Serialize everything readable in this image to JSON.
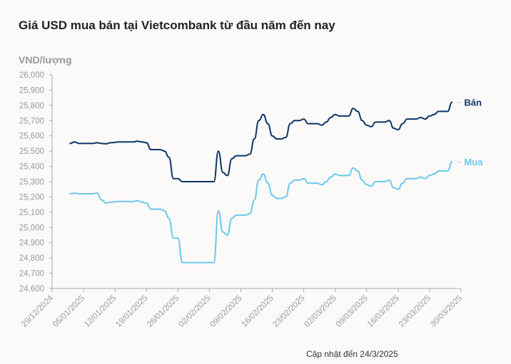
{
  "title": "Giá USD mua bán tại Vietcombank từ đầu năm đến nay",
  "footer": "Cập nhật đến 24/3/2025",
  "colors": {
    "ban": "#0d3566",
    "mua": "#6cc8ef",
    "axis": "#a9a9a9",
    "tick_text": "#9a9a9a",
    "grid": "#ececec"
  },
  "chart_data": {
    "type": "line",
    "ylabel": "VND/lượng",
    "ylim": [
      24600,
      26000
    ],
    "yticks": [
      24600,
      24700,
      24800,
      24900,
      25000,
      25100,
      25200,
      25300,
      25400,
      25500,
      25600,
      25700,
      25800,
      25900,
      26000
    ],
    "ytick_labels": [
      "24,600",
      "24,700",
      "24,800",
      "24,900",
      "25,000",
      "25,100",
      "25,200",
      "25,300",
      "25,400",
      "25,500",
      "25,600",
      "25,700",
      "25,800",
      "25,900",
      "26,000"
    ],
    "xlim": [
      "2024-12-29",
      "2025-03-30"
    ],
    "xtick_labels": [
      "29/12/2024",
      "05/01/2025",
      "12/01/2025",
      "19/01/2025",
      "26/01/2025",
      "02/02/2025",
      "09/02/2025",
      "16/02/2025",
      "23/02/2025",
      "02/03/2025",
      "09/03/2025",
      "16/03/2025",
      "23/03/2025",
      "30/03/2025"
    ],
    "xtick_dates": [
      "2024-12-29",
      "2025-01-05",
      "2025-01-12",
      "2025-01-19",
      "2025-01-26",
      "2025-02-02",
      "2025-02-09",
      "2025-02-16",
      "2025-02-23",
      "2025-03-02",
      "2025-03-09",
      "2025-03-16",
      "2025-03-23",
      "2025-03-30"
    ],
    "series": [
      {
        "name": "Bán",
        "points": [
          [
            "2025-01-02",
            25550
          ],
          [
            "2025-01-03",
            25560
          ],
          [
            "2025-01-04",
            25550
          ],
          [
            "2025-01-06",
            25550
          ],
          [
            "2025-01-07",
            25550
          ],
          [
            "2025-01-08",
            25555
          ],
          [
            "2025-01-09",
            25550
          ],
          [
            "2025-01-10",
            25548
          ],
          [
            "2025-01-11",
            25555
          ],
          [
            "2025-01-13",
            25560
          ],
          [
            "2025-01-14",
            25560
          ],
          [
            "2025-01-15",
            25560
          ],
          [
            "2025-01-16",
            25560
          ],
          [
            "2025-01-17",
            25565
          ],
          [
            "2025-01-18",
            25560
          ],
          [
            "2025-01-19",
            25555
          ],
          [
            "2025-01-20",
            25510
          ],
          [
            "2025-01-21",
            25510
          ],
          [
            "2025-01-22",
            25510
          ],
          [
            "2025-01-23",
            25500
          ],
          [
            "2025-01-24",
            25460
          ],
          [
            "2025-01-25",
            25320
          ],
          [
            "2025-01-26",
            25320
          ],
          [
            "2025-01-27",
            25300
          ],
          [
            "2025-01-29",
            25300
          ],
          [
            "2025-01-31",
            25300
          ],
          [
            "2025-02-02",
            25300
          ],
          [
            "2025-02-03",
            25300
          ],
          [
            "2025-02-04",
            25500
          ],
          [
            "2025-02-05",
            25360
          ],
          [
            "2025-02-06",
            25340
          ],
          [
            "2025-02-07",
            25450
          ],
          [
            "2025-02-08",
            25470
          ],
          [
            "2025-02-10",
            25470
          ],
          [
            "2025-02-11",
            25480
          ],
          [
            "2025-02-12",
            25580
          ],
          [
            "2025-02-13",
            25700
          ],
          [
            "2025-02-14",
            25740
          ],
          [
            "2025-02-15",
            25680
          ],
          [
            "2025-02-16",
            25600
          ],
          [
            "2025-02-17",
            25580
          ],
          [
            "2025-02-18",
            25580
          ],
          [
            "2025-02-19",
            25590
          ],
          [
            "2025-02-20",
            25680
          ],
          [
            "2025-02-21",
            25700
          ],
          [
            "2025-02-22",
            25700
          ],
          [
            "2025-02-23",
            25710
          ],
          [
            "2025-02-24",
            25680
          ],
          [
            "2025-02-25",
            25680
          ],
          [
            "2025-02-26",
            25680
          ],
          [
            "2025-02-27",
            25670
          ],
          [
            "2025-02-28",
            25690
          ],
          [
            "2025-03-01",
            25720
          ],
          [
            "2025-03-02",
            25740
          ],
          [
            "2025-03-03",
            25730
          ],
          [
            "2025-03-04",
            25730
          ],
          [
            "2025-03-05",
            25730
          ],
          [
            "2025-03-06",
            25780
          ],
          [
            "2025-03-07",
            25760
          ],
          [
            "2025-03-08",
            25700
          ],
          [
            "2025-03-09",
            25670
          ],
          [
            "2025-03-10",
            25660
          ],
          [
            "2025-03-11",
            25690
          ],
          [
            "2025-03-12",
            25690
          ],
          [
            "2025-03-13",
            25690
          ],
          [
            "2025-03-14",
            25700
          ],
          [
            "2025-03-15",
            25650
          ],
          [
            "2025-03-16",
            25640
          ],
          [
            "2025-03-17",
            25680
          ],
          [
            "2025-03-18",
            25710
          ],
          [
            "2025-03-19",
            25710
          ],
          [
            "2025-03-20",
            25710
          ],
          [
            "2025-03-21",
            25720
          ],
          [
            "2025-03-22",
            25710
          ],
          [
            "2025-03-23",
            25730
          ],
          [
            "2025-03-24",
            25740
          ],
          [
            "2025-03-25",
            25760
          ],
          [
            "2025-03-26",
            25760
          ],
          [
            "2025-03-27",
            25760
          ],
          [
            "2025-03-28",
            25820
          ]
        ]
      },
      {
        "name": "Mua",
        "points": [
          [
            "2025-01-02",
            25220
          ],
          [
            "2025-01-03",
            25225
          ],
          [
            "2025-01-04",
            25220
          ],
          [
            "2025-01-06",
            25220
          ],
          [
            "2025-01-07",
            25220
          ],
          [
            "2025-01-08",
            25225
          ],
          [
            "2025-01-09",
            25180
          ],
          [
            "2025-01-10",
            25160
          ],
          [
            "2025-01-11",
            25165
          ],
          [
            "2025-01-13",
            25170
          ],
          [
            "2025-01-14",
            25170
          ],
          [
            "2025-01-15",
            25170
          ],
          [
            "2025-01-16",
            25170
          ],
          [
            "2025-01-17",
            25175
          ],
          [
            "2025-01-18",
            25165
          ],
          [
            "2025-01-19",
            25160
          ],
          [
            "2025-01-20",
            25120
          ],
          [
            "2025-01-21",
            25120
          ],
          [
            "2025-01-22",
            25120
          ],
          [
            "2025-01-23",
            25110
          ],
          [
            "2025-01-24",
            25060
          ],
          [
            "2025-01-25",
            24930
          ],
          [
            "2025-01-26",
            24930
          ],
          [
            "2025-01-27",
            24770
          ],
          [
            "2025-01-29",
            24770
          ],
          [
            "2025-01-31",
            24770
          ],
          [
            "2025-02-02",
            24770
          ],
          [
            "2025-02-03",
            24770
          ],
          [
            "2025-02-04",
            25110
          ],
          [
            "2025-02-05",
            24970
          ],
          [
            "2025-02-06",
            24950
          ],
          [
            "2025-02-07",
            25060
          ],
          [
            "2025-02-08",
            25080
          ],
          [
            "2025-02-10",
            25080
          ],
          [
            "2025-02-11",
            25090
          ],
          [
            "2025-02-12",
            25180
          ],
          [
            "2025-02-13",
            25310
          ],
          [
            "2025-02-14",
            25350
          ],
          [
            "2025-02-15",
            25290
          ],
          [
            "2025-02-16",
            25210
          ],
          [
            "2025-02-17",
            25190
          ],
          [
            "2025-02-18",
            25190
          ],
          [
            "2025-02-19",
            25200
          ],
          [
            "2025-02-20",
            25290
          ],
          [
            "2025-02-21",
            25310
          ],
          [
            "2025-02-22",
            25310
          ],
          [
            "2025-02-23",
            25320
          ],
          [
            "2025-02-24",
            25290
          ],
          [
            "2025-02-25",
            25290
          ],
          [
            "2025-02-26",
            25290
          ],
          [
            "2025-02-27",
            25280
          ],
          [
            "2025-02-28",
            25300
          ],
          [
            "2025-03-01",
            25330
          ],
          [
            "2025-03-02",
            25350
          ],
          [
            "2025-03-03",
            25340
          ],
          [
            "2025-03-04",
            25340
          ],
          [
            "2025-03-05",
            25340
          ],
          [
            "2025-03-06",
            25390
          ],
          [
            "2025-03-07",
            25370
          ],
          [
            "2025-03-08",
            25310
          ],
          [
            "2025-03-09",
            25280
          ],
          [
            "2025-03-10",
            25270
          ],
          [
            "2025-03-11",
            25300
          ],
          [
            "2025-03-12",
            25300
          ],
          [
            "2025-03-13",
            25300
          ],
          [
            "2025-03-14",
            25310
          ],
          [
            "2025-03-15",
            25260
          ],
          [
            "2025-03-16",
            25250
          ],
          [
            "2025-03-17",
            25290
          ],
          [
            "2025-03-18",
            25320
          ],
          [
            "2025-03-19",
            25320
          ],
          [
            "2025-03-20",
            25320
          ],
          [
            "2025-03-21",
            25330
          ],
          [
            "2025-03-22",
            25320
          ],
          [
            "2025-03-23",
            25340
          ],
          [
            "2025-03-24",
            25350
          ],
          [
            "2025-03-25",
            25370
          ],
          [
            "2025-03-26",
            25370
          ],
          [
            "2025-03-27",
            25370
          ],
          [
            "2025-03-28",
            25430
          ]
        ]
      }
    ]
  }
}
